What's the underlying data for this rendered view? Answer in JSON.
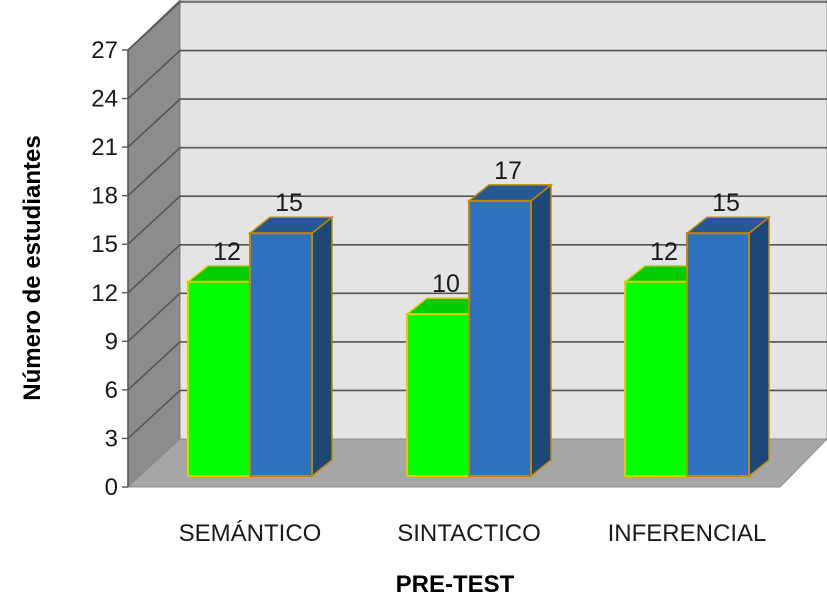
{
  "chart_data": {
    "type": "bar",
    "title": "",
    "xlabel": "PRE-TEST",
    "ylabel": "Número de estudiantes",
    "categories": [
      "SEMÁNTICO",
      "SINTACTICO",
      "INFERENCIAL"
    ],
    "series": [
      {
        "values": [
          12,
          10,
          12
        ],
        "color": "#00ff00",
        "edge_color": "#e6c800"
      },
      {
        "values": [
          15,
          17,
          15
        ],
        "color": "#2f72c0",
        "edge_color": "#c08a00"
      }
    ],
    "data_labels": [
      "12",
      "10",
      "12",
      "15",
      "17",
      "15"
    ],
    "ylim": [
      0,
      27
    ],
    "yticks": [
      0,
      3,
      6,
      9,
      12,
      15,
      18,
      21,
      24,
      27
    ],
    "ytick_labels": [
      "0",
      "3",
      "6",
      "9",
      "12",
      "15",
      "18",
      "21",
      "24",
      "27"
    ],
    "grid": true,
    "legend": "none",
    "style": "3d",
    "wall_color": "#e4e4e4",
    "side_wall_color": "#8c8c8c",
    "floor_color": "#a6a6a6",
    "gridline_color": "#555555"
  }
}
